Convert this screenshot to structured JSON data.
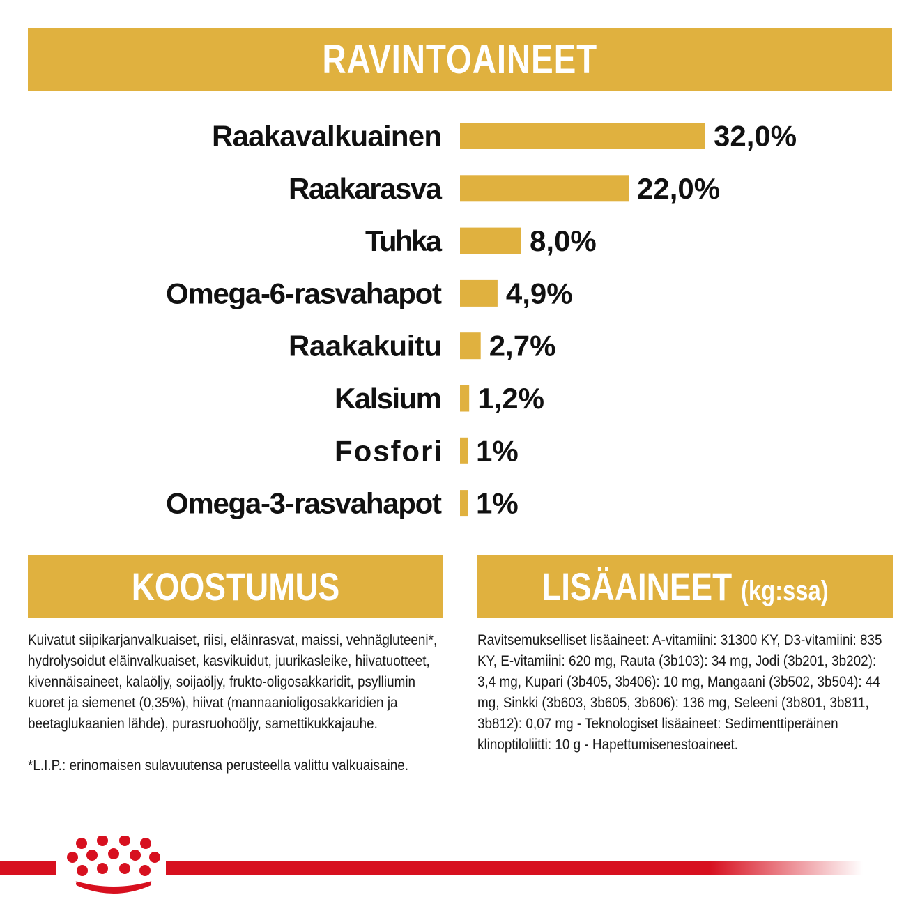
{
  "colors": {
    "gold": "#e0b13f",
    "red": "#d7101f",
    "text": "#111111",
    "white": "#ffffff"
  },
  "banners": {
    "nutrients": "RAVINTOAINEET",
    "composition": "KOOSTUMUS",
    "additives_main": "LISÄAINEET",
    "additives_sub": "(kg:ssa)"
  },
  "chart_data": {
    "type": "bar",
    "orientation": "horizontal",
    "categories": [
      "Raakavalkuainen",
      "Raakarasva",
      "Tuhka",
      "Omega-6-rasvahapot",
      "Raakakuitu",
      "Kalsium",
      "Fosfori",
      "Omega-3-rasvahapot"
    ],
    "values": [
      32.0,
      22.0,
      8.0,
      4.9,
      2.7,
      1.2,
      1.0,
      1.0
    ],
    "value_labels": [
      "32,0%",
      "22,0%",
      "8,0%",
      "4,9%",
      "2,7%",
      "1,2%",
      "1%",
      "1%"
    ],
    "xlim": [
      0,
      32
    ],
    "grid": false,
    "legend": "none",
    "bar_color": "#e0b13f"
  },
  "composition": {
    "text": "Kuivatut siipikarjanvalkuaiset, riisi, eläinrasvat, maissi, vehnägluteeni*, hydrolysoidut eläinvalkuaiset, kasvikuidut, juurikasleike, hiivatuotteet, kivennäisaineet, kalaöljy, soijaöljy, frukto-oligosakkaridit, psylliumin kuoret ja siemenet (0,35%), hiivat (mannaanioligosakkaridien ja beetaglukaanien lähde), purasruohoöljy, samettikukkajauhe.",
    "footnote": "*L.I.P.: erinomaisen sulavuutensa perusteella valittu valkuaisaine."
  },
  "additives": {
    "text": "Ravitsemukselliset lisäaineet: A-vitamiini: 31300 KY, D3-vitamiini: 835 KY, E-vitamiini: 620 mg, Rauta (3b103): 34 mg, Jodi (3b201, 3b202): 3,4 mg, Kupari (3b405, 3b406): 10 mg, Mangaani (3b502, 3b504): 44 mg, Sinkki (3b603, 3b605, 3b606): 136 mg, Seleeni (3b801, 3b811, 3b812): 0,07 mg - Teknologiset lisäaineet: Sedimenttiperäinen klinoptiloliitti: 10 g - Hapettumisenestoaineet."
  },
  "footer": {
    "logo_icon": "crown-icon"
  }
}
